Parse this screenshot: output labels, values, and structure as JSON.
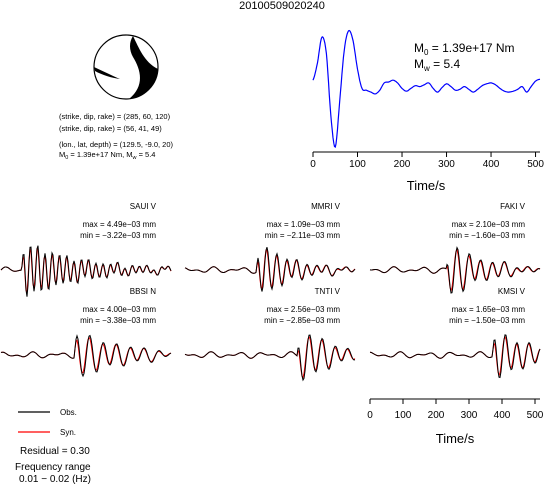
{
  "title": "20100509020240",
  "mechanism": {
    "line1": "(strike, dip, rake) = (285, 60, 120)",
    "line2": "(strike, dip, rake) = (56, 41, 49)",
    "line3": "(lon., lat, depth) = (129.5, -9.0, 20)",
    "m0_prefix": "M",
    "m0_sub": "0",
    "m0_text": " = 1.39e+17 Nm, M",
    "mw_sub": "w",
    "mw_text": " = 5.4"
  },
  "stf": {
    "m0_sub": "0",
    "m0_value": " = 1.39e+17 Nm",
    "mw_sub": "w",
    "mw_value": " = 5.4",
    "letter": "M",
    "xlabel": "Time/s",
    "xticks": [
      "0",
      "100",
      "200",
      "300",
      "400",
      "500"
    ]
  },
  "waveform_axis": {
    "xlabel": "Time/s",
    "xticks": [
      "0",
      "100",
      "200",
      "300",
      "400",
      "500"
    ]
  },
  "legend": {
    "obs": "Obs.",
    "syn": "Syn.",
    "residual": "Residual = 0.30",
    "freq_label": "Frequency range",
    "freq_value": "0.01 − 0.02 (Hz)"
  },
  "colors": {
    "observed": "#000000",
    "synthetic": "#ff0000",
    "stf": "#0000ff"
  },
  "chart_data": {
    "type": "line",
    "stf": {
      "x_range": [
        0,
        510
      ],
      "t": [
        0,
        10,
        20,
        30,
        40,
        50,
        60,
        70,
        80,
        90,
        100,
        110,
        120,
        130,
        140,
        150,
        160,
        170,
        180,
        190,
        200,
        210,
        220,
        230,
        240,
        250,
        260,
        270,
        280,
        290,
        300,
        310,
        320,
        330,
        340,
        350,
        360,
        370,
        380,
        390,
        400,
        410,
        420,
        430,
        440,
        450,
        460,
        470,
        480,
        490,
        500,
        510
      ],
      "y": [
        0.43,
        0.62,
        0.9,
        0.72,
        0.05,
        -0.3,
        0.2,
        0.75,
        0.97,
        0.86,
        0.55,
        0.34,
        0.32,
        0.3,
        0.28,
        0.32,
        0.4,
        0.41,
        0.43,
        0.4,
        0.34,
        0.31,
        0.34,
        0.37,
        0.36,
        0.38,
        0.4,
        0.34,
        0.3,
        0.35,
        0.39,
        0.36,
        0.32,
        0.33,
        0.36,
        0.33,
        0.3,
        0.33,
        0.37,
        0.39,
        0.4,
        0.38,
        0.34,
        0.31,
        0.3,
        0.31,
        0.33,
        0.36,
        0.3,
        0.36,
        0.42,
        0.44
      ]
    },
    "stations": [
      {
        "name": "SAUI V",
        "max": "max = 4.49e−03 mm",
        "min": "min = −3.22e−03 mm",
        "period": 16,
        "decay": 0.018,
        "onset": 0.12,
        "amp": 1.0,
        "phase": 0.0
      },
      {
        "name": "MMRI V",
        "max": "max = 1.09e−03 mm",
        "min": "min = −2.11e−03 mm",
        "period": 22,
        "decay": 0.03,
        "onset": 0.42,
        "amp": 1.0,
        "phase": 1.2
      },
      {
        "name": "FAKI V",
        "max": "max = 2.10e−03 mm",
        "min": "min = −1.60e−03 mm",
        "period": 26,
        "decay": 0.028,
        "onset": 0.45,
        "amp": 1.0,
        "phase": 2.1
      },
      {
        "name": "BBSI N",
        "max": "max = 4.00e−03 mm",
        "min": "min = −3.38e−03 mm",
        "period": 30,
        "decay": 0.025,
        "onset": 0.43,
        "amp": 1.0,
        "phase": 0.6
      },
      {
        "name": "TNTI V",
        "max": "max = 2.56e−03 mm",
        "min": "min = −2.85e−03 mm",
        "period": 28,
        "decay": 0.03,
        "onset": 0.66,
        "amp": 1.0,
        "phase": 1.7
      },
      {
        "name": "KMSI V",
        "max": "max = 1.65e−03 mm",
        "min": "min = −1.50e−03 mm",
        "period": 26,
        "decay": 0.03,
        "onset": 0.72,
        "amp": 1.0,
        "phase": 0.9
      }
    ]
  }
}
